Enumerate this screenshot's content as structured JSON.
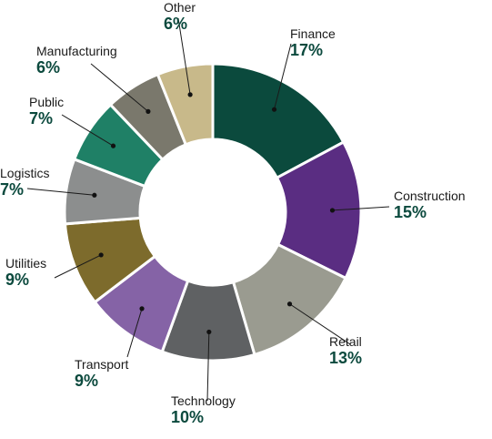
{
  "chart_data": {
    "type": "pie",
    "style": "donut",
    "slices": [
      {
        "label": "Finance",
        "value_label": "17%",
        "value": 17,
        "color": "#0b4a3d"
      },
      {
        "label": "Construction",
        "value_label": "15%",
        "value": 15,
        "color": "#5a2d82"
      },
      {
        "label": "Retail",
        "value_label": "13%",
        "value": 13,
        "color": "#9a9b90"
      },
      {
        "label": "Technology",
        "value_label": "10%",
        "value": 10,
        "color": "#5f6163"
      },
      {
        "label": "Transport",
        "value_label": "9%",
        "value": 9,
        "color": "#8563a6"
      },
      {
        "label": "Utilities",
        "value_label": "9%",
        "value": 9,
        "color": "#7d6b2c"
      },
      {
        "label": "Logistics",
        "value_label": "7%",
        "value": 7,
        "color": "#8c8e8e"
      },
      {
        "label": "Public",
        "value_label": "7%",
        "value": 7,
        "color": "#1f8066"
      },
      {
        "label": "Manufacturing",
        "value_label": "6%",
        "value": 6,
        "color": "#7a786c"
      },
      {
        "label": "Other",
        "value_label": "6%",
        "value": 6,
        "color": "#c8b98a"
      }
    ]
  }
}
